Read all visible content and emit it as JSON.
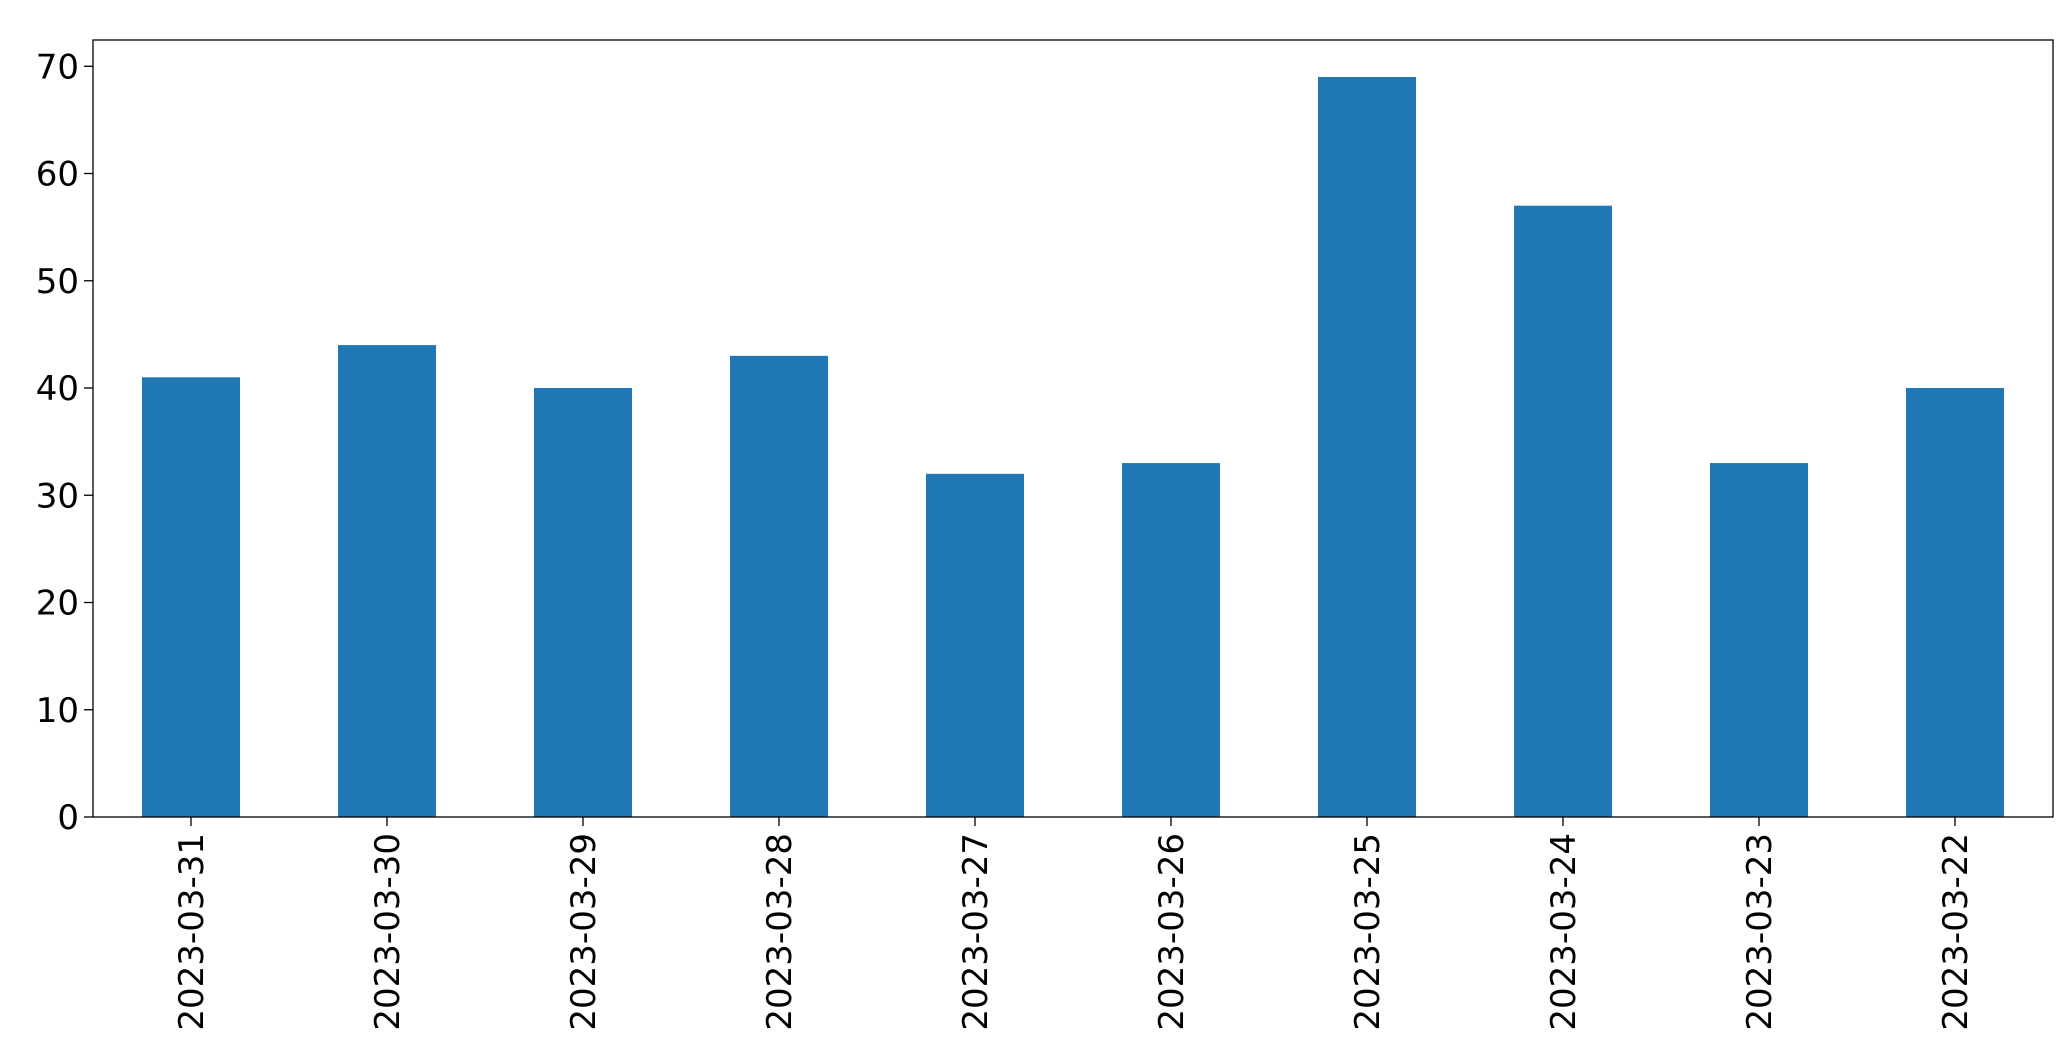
{
  "chart_data": {
    "type": "bar",
    "categories": [
      "2023-03-31",
      "2023-03-30",
      "2023-03-29",
      "2023-03-28",
      "2023-03-27",
      "2023-03-26",
      "2023-03-25",
      "2023-03-24",
      "2023-03-23",
      "2023-03-22"
    ],
    "values": [
      41,
      44,
      40,
      43,
      32,
      33,
      69,
      57,
      33,
      40
    ],
    "color": "#1f77b4",
    "ylim": [
      0,
      72.45
    ],
    "yticks": [
      0,
      10,
      20,
      30,
      40,
      50,
      60,
      70
    ],
    "grid": false
  }
}
